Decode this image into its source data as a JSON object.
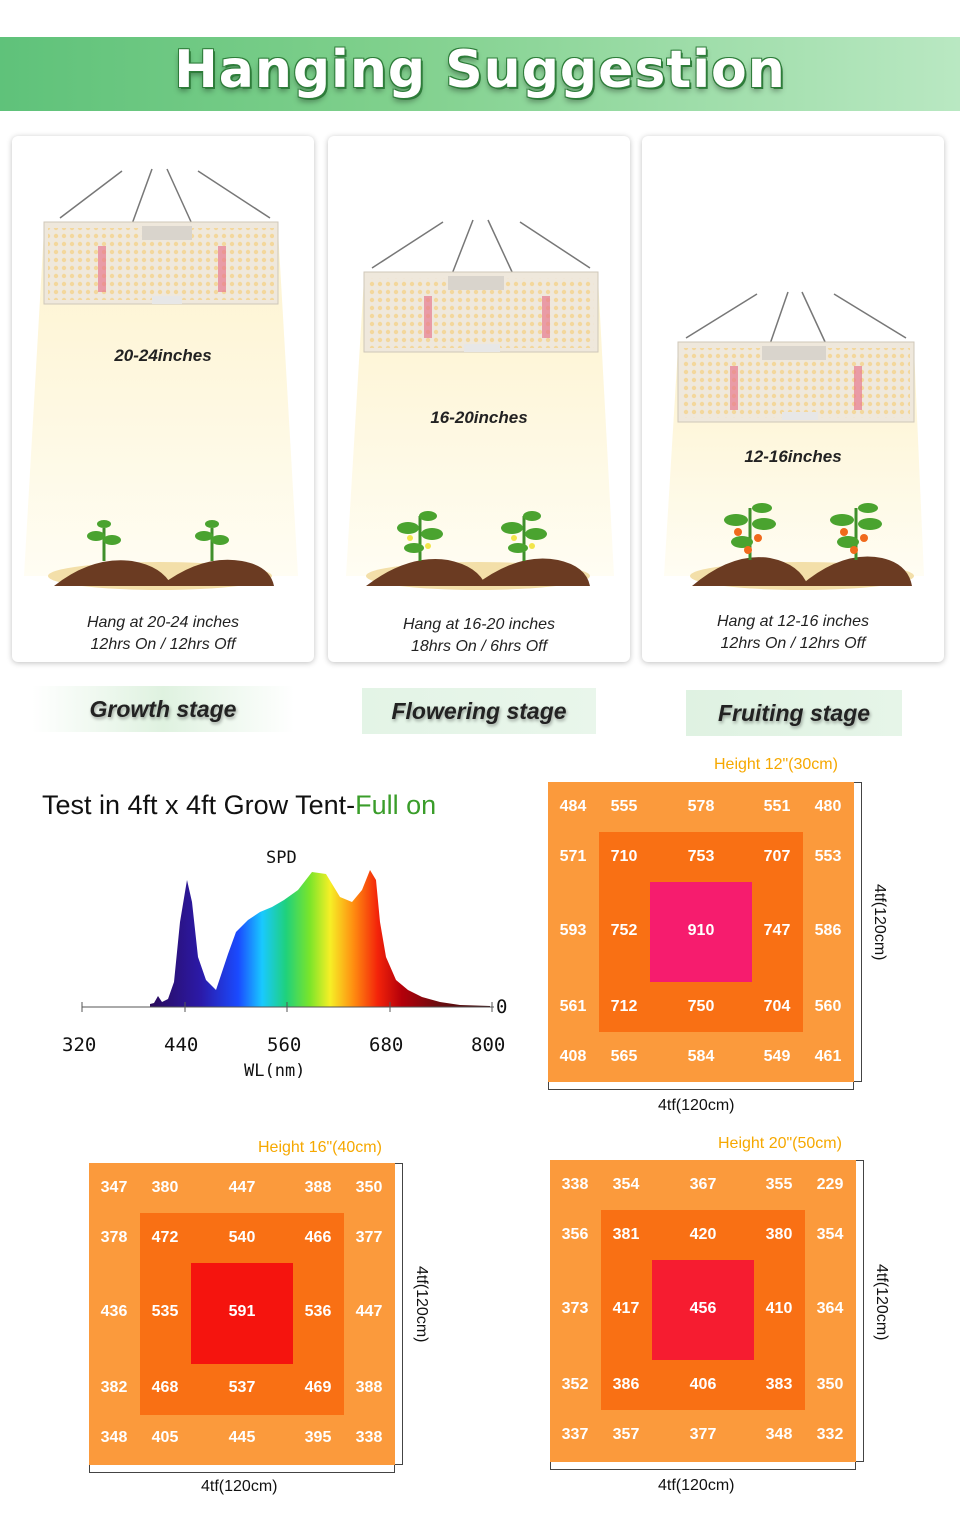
{
  "header": {
    "title": "Hanging Suggestion"
  },
  "stages": [
    {
      "distance": "20-24inches",
      "hang": "Hang at 20-24 inches",
      "schedule": "12hrs On / 12hrs Off",
      "label": "Growth stage"
    },
    {
      "distance": "16-20inches",
      "hang": "Hang at 16-20 inches",
      "schedule": "18hrs On / 6hrs Off",
      "label": "Flowering stage"
    },
    {
      "distance": "12-16inches",
      "hang": "Hang at 12-16 inches",
      "schedule": "12hrs On / 12hrs Off",
      "label": "Fruiting stage"
    }
  ],
  "test": {
    "title_prefix": "Test in 4ft x 4ft Grow Tent-",
    "title_highlight": "Full on"
  },
  "spd": {
    "title": "SPD",
    "xlabel": "WL(nm)",
    "x_ticks": [
      "320",
      "440",
      "560",
      "680",
      "800"
    ],
    "y_tick": "0"
  },
  "colors": {
    "outer": "#fb9a3c",
    "middle": "#f97014",
    "core_12": "#f61c6e",
    "core_16": "#f5140e",
    "core_20": "#f61c30",
    "height_label": "#f6a800",
    "highlight_green": "#3a9d2a"
  },
  "ppfd": [
    {
      "height": "Height 12\"(30cm)",
      "width_label": "4tf(120cm)",
      "depth_label": "4tf(120cm)",
      "rows": [
        [
          "484",
          "555",
          "578",
          "551",
          "480"
        ],
        [
          "571",
          "710",
          "753",
          "707",
          "553"
        ],
        [
          "593",
          "752",
          "910",
          "747",
          "586"
        ],
        [
          "561",
          "712",
          "750",
          "704",
          "560"
        ],
        [
          "408",
          "565",
          "584",
          "549",
          "461"
        ]
      ]
    },
    {
      "height": "Height 16\"(40cm)",
      "width_label": "4tf(120cm)",
      "depth_label": "4tf(120cm)",
      "rows": [
        [
          "347",
          "380",
          "447",
          "388",
          "350"
        ],
        [
          "378",
          "472",
          "540",
          "466",
          "377"
        ],
        [
          "436",
          "535",
          "591",
          "536",
          "447"
        ],
        [
          "382",
          "468",
          "537",
          "469",
          "388"
        ],
        [
          "348",
          "405",
          "445",
          "395",
          "338"
        ]
      ]
    },
    {
      "height": "Height 20\"(50cm)",
      "width_label": "4tf(120cm)",
      "depth_label": "4tf(120cm)",
      "rows": [
        [
          "338",
          "354",
          "367",
          "355",
          "229"
        ],
        [
          "356",
          "381",
          "420",
          "380",
          "354"
        ],
        [
          "373",
          "417",
          "456",
          "410",
          "364"
        ],
        [
          "352",
          "386",
          "406",
          "383",
          "350"
        ],
        [
          "337",
          "357",
          "377",
          "348",
          "332"
        ]
      ]
    }
  ]
}
